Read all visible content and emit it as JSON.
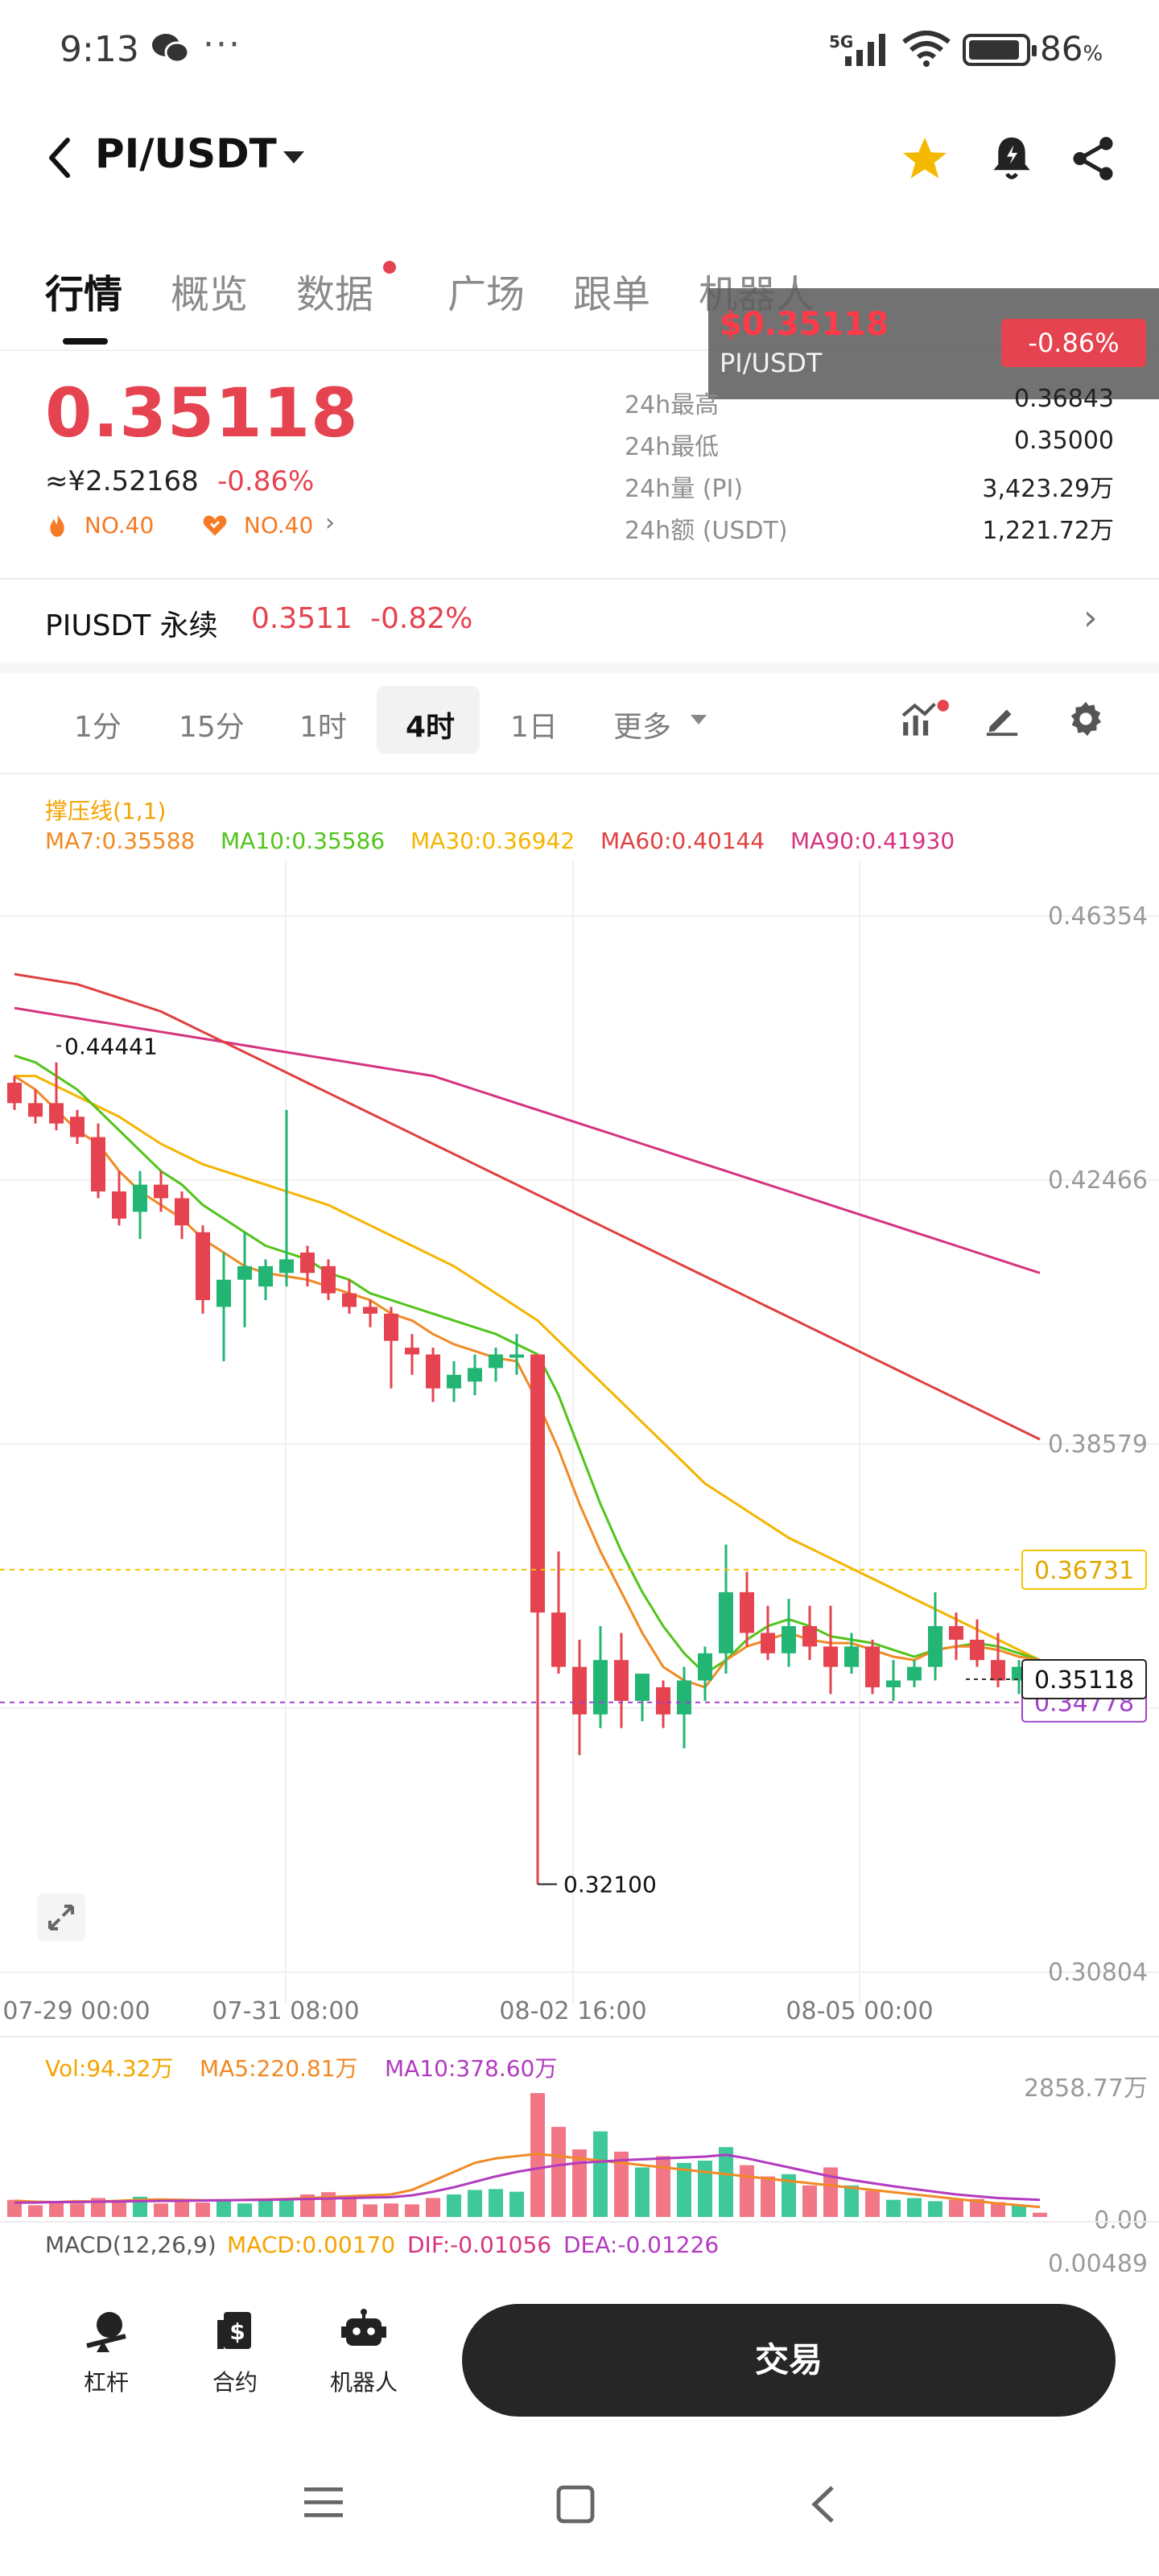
{
  "status_bar": {
    "time": "9:13",
    "more": "···",
    "network": "5G",
    "battery": "86",
    "battery_unit": "%"
  },
  "header": {
    "pair": "PI/USDT"
  },
  "tabs": [
    {
      "label": "行情"
    },
    {
      "label": "概览"
    },
    {
      "label": "数据"
    },
    {
      "label": "广场"
    },
    {
      "label": "跟单"
    },
    {
      "label": "机器人"
    }
  ],
  "floating_ticker": {
    "price": "$0.35118",
    "symbol": "PI/USDT",
    "change": "-0.86%"
  },
  "price": {
    "last": "0.35118",
    "cny": "≈¥2.52168",
    "change": "-0.86%",
    "rank1": "NO.40",
    "rank2": "NO.40"
  },
  "stats": [
    {
      "label": "24h最高",
      "value": "0.36843"
    },
    {
      "label": "24h最低",
      "value": "0.35000"
    },
    {
      "label": "24h量 (PI)",
      "value": "3,423.29万"
    },
    {
      "label": "24h额 (USDT)",
      "value": "1,221.72万"
    }
  ],
  "perpetual": {
    "name": "PIUSDT 永续",
    "price": "0.3511",
    "change": "-0.82%"
  },
  "intervals": [
    "1分",
    "15分",
    "1时",
    "4时",
    "1日",
    "更多"
  ],
  "indicators": {
    "support": "撑压线(1,1)",
    "ma7": "MA7:0.35588",
    "ma10": "MA10:0.35586",
    "ma30": "MA30:0.36942",
    "ma60": "MA60:0.40144",
    "ma90": "MA90:0.41930"
  },
  "colors": {
    "up": "#22b573",
    "down": "#e5434f",
    "ma7": "#f08a24",
    "ma10": "#52c41a",
    "ma30": "#f5b400",
    "ma60": "#e04040",
    "ma90": "#d6337f"
  },
  "chart_data": {
    "type": "candlestick",
    "price_axis_ticks": [
      "0.46354",
      "0.42466",
      "0.38579",
      "0.30804"
    ],
    "date_labels": [
      "07-29 00:00",
      "07-31 08:00",
      "08-02 16:00",
      "08-05 00:00"
    ],
    "markers": {
      "high": "0.44441",
      "low": "0.32100",
      "resistance": "0.36731",
      "last": "0.35118",
      "support": "0.34778"
    },
    "candles": [
      [
        0.439,
        0.44,
        0.436,
        0.435
      ],
      [
        0.436,
        0.438,
        0.434,
        0.433
      ],
      [
        0.436,
        0.442,
        0.433,
        0.432
      ],
      [
        0.434,
        0.435,
        0.431,
        0.43
      ],
      [
        0.431,
        0.433,
        0.423,
        0.422
      ],
      [
        0.423,
        0.426,
        0.419,
        0.418
      ],
      [
        0.42,
        0.426,
        0.424,
        0.416
      ],
      [
        0.424,
        0.426,
        0.422,
        0.42
      ],
      [
        0.422,
        0.423,
        0.418,
        0.416
      ],
      [
        0.417,
        0.418,
        0.407,
        0.405
      ],
      [
        0.406,
        0.414,
        0.41,
        0.398
      ],
      [
        0.41,
        0.417,
        0.412,
        0.403
      ],
      [
        0.409,
        0.413,
        0.412,
        0.407
      ],
      [
        0.411,
        0.435,
        0.413,
        0.409
      ],
      [
        0.414,
        0.415,
        0.411,
        0.409
      ],
      [
        0.412,
        0.413,
        0.408,
        0.407
      ],
      [
        0.408,
        0.41,
        0.406,
        0.405
      ],
      [
        0.406,
        0.407,
        0.405,
        0.403
      ],
      [
        0.405,
        0.406,
        0.401,
        0.394
      ],
      [
        0.4,
        0.402,
        0.399,
        0.396
      ],
      [
        0.399,
        0.4,
        0.394,
        0.392
      ],
      [
        0.394,
        0.398,
        0.396,
        0.392
      ],
      [
        0.395,
        0.399,
        0.397,
        0.393
      ],
      [
        0.397,
        0.4,
        0.399,
        0.395
      ],
      [
        0.399,
        0.402,
        0.399,
        0.396
      ],
      [
        0.399,
        0.399,
        0.361,
        0.321
      ],
      [
        0.361,
        0.37,
        0.353,
        0.352
      ],
      [
        0.353,
        0.357,
        0.346,
        0.34
      ],
      [
        0.346,
        0.359,
        0.354,
        0.344
      ],
      [
        0.354,
        0.358,
        0.348,
        0.344
      ],
      [
        0.348,
        0.352,
        0.352,
        0.345
      ],
      [
        0.35,
        0.351,
        0.346,
        0.344
      ],
      [
        0.346,
        0.353,
        0.351,
        0.341
      ],
      [
        0.351,
        0.356,
        0.355,
        0.348
      ],
      [
        0.355,
        0.371,
        0.364,
        0.352
      ],
      [
        0.364,
        0.367,
        0.358,
        0.356
      ],
      [
        0.358,
        0.362,
        0.355,
        0.354
      ],
      [
        0.355,
        0.363,
        0.359,
        0.353
      ],
      [
        0.359,
        0.362,
        0.356,
        0.354
      ],
      [
        0.356,
        0.362,
        0.353,
        0.349
      ],
      [
        0.353,
        0.358,
        0.356,
        0.352
      ],
      [
        0.356,
        0.357,
        0.35,
        0.349
      ],
      [
        0.35,
        0.354,
        0.351,
        0.348
      ],
      [
        0.351,
        0.354,
        0.353,
        0.35
      ],
      [
        0.353,
        0.364,
        0.359,
        0.351
      ],
      [
        0.359,
        0.361,
        0.357,
        0.354
      ],
      [
        0.357,
        0.36,
        0.354,
        0.353
      ],
      [
        0.354,
        0.358,
        0.351,
        0.35
      ],
      [
        0.351,
        0.354,
        0.353,
        0.349
      ],
      [
        0.353,
        0.354,
        0.3512,
        0.35
      ]
    ],
    "ma7": [
      0.44,
      0.438,
      0.435,
      0.432,
      0.43,
      0.426,
      0.423,
      0.421,
      0.419,
      0.416,
      0.414,
      0.412,
      0.411,
      0.4105,
      0.41,
      0.409,
      0.408,
      0.407,
      0.405,
      0.404,
      0.402,
      0.4005,
      0.3995,
      0.3985,
      0.398,
      0.392,
      0.385,
      0.377,
      0.37,
      0.364,
      0.358,
      0.353,
      0.351,
      0.35,
      0.354,
      0.356,
      0.357,
      0.358,
      0.357,
      0.3565,
      0.3565,
      0.3555,
      0.3545,
      0.354,
      0.3555,
      0.356,
      0.356,
      0.3555,
      0.3545,
      0.354
    ],
    "ma10": [
      0.443,
      0.442,
      0.44,
      0.438,
      0.435,
      0.432,
      0.429,
      0.426,
      0.424,
      0.421,
      0.419,
      0.417,
      0.415,
      0.414,
      0.413,
      0.411,
      0.41,
      0.408,
      0.407,
      0.406,
      0.405,
      0.404,
      0.403,
      0.402,
      0.4005,
      0.399,
      0.393,
      0.385,
      0.377,
      0.37,
      0.364,
      0.359,
      0.355,
      0.352,
      0.354,
      0.357,
      0.359,
      0.36,
      0.359,
      0.3575,
      0.357,
      0.3565,
      0.3555,
      0.3545,
      0.3555,
      0.356,
      0.3565,
      0.356,
      0.355,
      0.354
    ],
    "ma30": [
      0.44,
      0.44,
      0.4385,
      0.437,
      0.4355,
      0.434,
      0.432,
      0.43,
      0.4285,
      0.427,
      0.426,
      0.425,
      0.424,
      0.423,
      0.422,
      0.421,
      0.4195,
      0.418,
      0.4165,
      0.415,
      0.4135,
      0.412,
      0.41,
      0.408,
      0.406,
      0.404,
      0.401,
      0.398,
      0.395,
      0.392,
      0.389,
      0.386,
      0.383,
      0.38,
      0.378,
      0.376,
      0.374,
      0.372,
      0.3705,
      0.369,
      0.3675,
      0.366,
      0.3645,
      0.363,
      0.3615,
      0.36,
      0.3585,
      0.357,
      0.3555,
      0.354
    ],
    "ma60": [
      0.455,
      0.4545,
      0.454,
      0.4535,
      0.4525,
      0.4515,
      0.4505,
      0.4495,
      0.448,
      0.4465,
      0.445,
      0.4435,
      0.442,
      0.4405,
      0.439,
      0.4375,
      0.436,
      0.4345,
      0.433,
      0.4315,
      0.43,
      0.4285,
      0.427,
      0.4255,
      0.424,
      0.4225,
      0.421,
      0.4195,
      0.418,
      0.4165,
      0.415,
      0.4135,
      0.412,
      0.4105,
      0.409,
      0.4075,
      0.406,
      0.4045,
      0.403,
      0.4015,
      0.4,
      0.3985,
      0.397,
      0.3955,
      0.394,
      0.3925,
      0.391,
      0.3895,
      0.388,
      0.3865
    ],
    "ma90": [
      0.45,
      0.4495,
      0.449,
      0.4485,
      0.448,
      0.4475,
      0.447,
      0.4465,
      0.446,
      0.4455,
      0.445,
      0.4445,
      0.444,
      0.4435,
      0.443,
      0.4425,
      0.442,
      0.4415,
      0.441,
      0.4405,
      0.44,
      0.439,
      0.438,
      0.437,
      0.436,
      0.435,
      0.434,
      0.433,
      0.432,
      0.431,
      0.43,
      0.429,
      0.428,
      0.427,
      0.426,
      0.425,
      0.424,
      0.423,
      0.422,
      0.421,
      0.42,
      0.419,
      0.418,
      0.417,
      0.416,
      0.415,
      0.414,
      0.413,
      0.412,
      0.411
    ],
    "volume": {
      "labels": {
        "vol": "Vol:94.32万",
        "ma5": "MA5:220.81万",
        "ma10": "MA10:378.60万"
      },
      "axis_ticks": [
        "2858.77万",
        "0.00"
      ],
      "bars": [
        380,
        260,
        320,
        300,
        420,
        380,
        450,
        300,
        350,
        320,
        390,
        300,
        360,
        420,
        500,
        550,
        400,
        280,
        300,
        280,
        420,
        500,
        600,
        620,
        560,
        2750,
        2000,
        1500,
        1900,
        1450,
        1100,
        1350,
        1200,
        1250,
        1550,
        1150,
        900,
        950,
        700,
        1100,
        700,
        580,
        380,
        420,
        350,
        380,
        400,
        330,
        250,
        94
      ],
      "ma5": [
        360,
        340,
        330,
        350,
        340,
        360,
        380,
        390,
        380,
        370,
        370,
        380,
        390,
        400,
        420,
        440,
        460,
        480,
        500,
        600,
        800,
        1000,
        1200,
        1300,
        1350,
        1400,
        1350,
        1300,
        1250,
        1200,
        1150,
        1100,
        1050,
        1000,
        950,
        900,
        850,
        800,
        750,
        700,
        650,
        600,
        550,
        500,
        450,
        400,
        350,
        300,
        260,
        221
      ],
      "ma10": [
        320,
        320,
        330,
        330,
        340,
        345,
        350,
        355,
        360,
        365,
        370,
        375,
        380,
        390,
        400,
        410,
        420,
        430,
        440,
        480,
        560,
        660,
        780,
        900,
        1000,
        1080,
        1150,
        1200,
        1230,
        1260,
        1280,
        1300,
        1320,
        1340,
        1380,
        1300,
        1200,
        1100,
        1000,
        900,
        820,
        750,
        680,
        620,
        560,
        500,
        460,
        420,
        400,
        379
      ]
    },
    "macd": {
      "label": "MACD(12,26,9)",
      "macd": "MACD:0.00170",
      "dif": "DIF:-0.01056",
      "dea": "DEA:-0.01226",
      "tick": "0.00489"
    }
  },
  "bottom_bar": {
    "leverage": "杠杆",
    "contract": "合约",
    "bot": "机器人",
    "trade": "交易"
  }
}
